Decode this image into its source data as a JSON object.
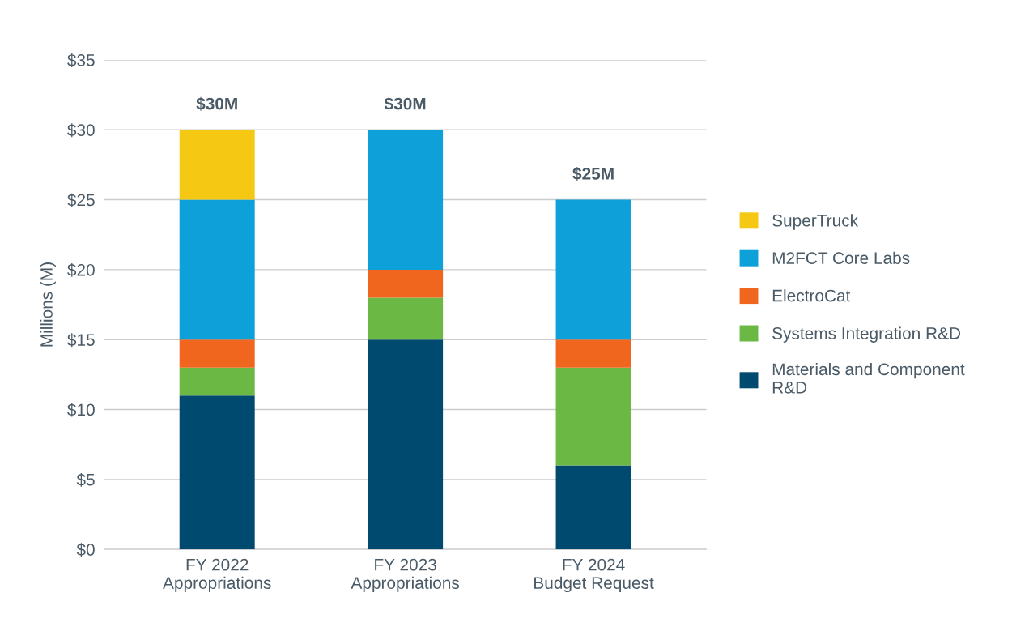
{
  "chart_data": {
    "type": "bar",
    "stacked": true,
    "ylabel": "Millions (M)",
    "categories": [
      "FY 2022\nAppropriations",
      "FY 2023\nAppropriations",
      "FY 2024\nBudget Request"
    ],
    "series": [
      {
        "name": "Materials and Component\nR&D",
        "color": "#004a6f",
        "values": [
          11,
          15,
          6
        ]
      },
      {
        "name": "Systems Integration R&D",
        "color": "#6bb844",
        "values": [
          2,
          3,
          7
        ]
      },
      {
        "name": "ElectroCat",
        "color": "#f0661f",
        "values": [
          2,
          2,
          2
        ]
      },
      {
        "name": "M2FCT Core Labs",
        "color": "#0ea0d8",
        "values": [
          10,
          10,
          10
        ]
      },
      {
        "name": "SuperTruck",
        "color": "#f5c913",
        "values": [
          5,
          null,
          null
        ]
      }
    ],
    "totals": [
      "$30M",
      "$30M",
      "$25M"
    ],
    "ylim": [
      0,
      35
    ],
    "yticks": [
      {
        "value": 0,
        "label": "$0"
      },
      {
        "value": 5,
        "label": "$5"
      },
      {
        "value": 10,
        "label": "$10"
      },
      {
        "value": 15,
        "label": "$15"
      },
      {
        "value": 20,
        "label": "$20"
      },
      {
        "value": 25,
        "label": "$25"
      },
      {
        "value": 30,
        "label": "$30"
      },
      {
        "value": 35,
        "label": "$35"
      }
    ],
    "grid": "y",
    "legend": "right"
  }
}
